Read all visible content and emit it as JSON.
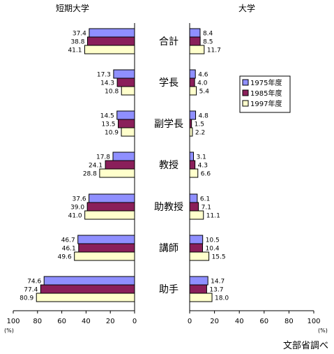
{
  "chart_data": {
    "type": "bar",
    "orientation": "horizontal",
    "panel_titles": {
      "left": "短期大学",
      "right": "大学"
    },
    "categories": [
      "合計",
      "学長",
      "副学長",
      "教授",
      "助教授",
      "講師",
      "助手"
    ],
    "series": [
      {
        "name": "1975年度",
        "color": "#8f8fff"
      },
      {
        "name": "1985年度",
        "color": "#8a1f5a"
      },
      {
        "name": "1997年度",
        "color": "#ffffcc"
      }
    ],
    "short_college": [
      [
        37.4,
        38.8,
        41.1
      ],
      [
        17.3,
        14.3,
        10.8
      ],
      [
        14.5,
        13.5,
        10.9
      ],
      [
        17.8,
        24.1,
        28.8
      ],
      [
        37.6,
        39.0,
        41.0
      ],
      [
        46.7,
        46.1,
        49.6
      ],
      [
        74.6,
        77.4,
        80.9
      ]
    ],
    "university": [
      [
        8.4,
        8.5,
        11.7
      ],
      [
        4.6,
        4.0,
        5.4
      ],
      [
        4.8,
        1.5,
        2.2
      ],
      [
        3.1,
        4.3,
        6.6
      ],
      [
        6.1,
        7.1,
        11.1
      ],
      [
        10.5,
        10.4,
        15.5
      ],
      [
        14.7,
        13.7,
        18.0
      ]
    ],
    "left_ticks": [
      "100",
      "80",
      "60",
      "40",
      "20",
      "0"
    ],
    "right_ticks": [
      "0",
      "20",
      "40",
      "60",
      "80",
      "100"
    ],
    "unit_label": "(%)",
    "xlim": [
      0,
      100
    ],
    "legend_position": "right panel, upper right",
    "source": "文部省調べ"
  }
}
